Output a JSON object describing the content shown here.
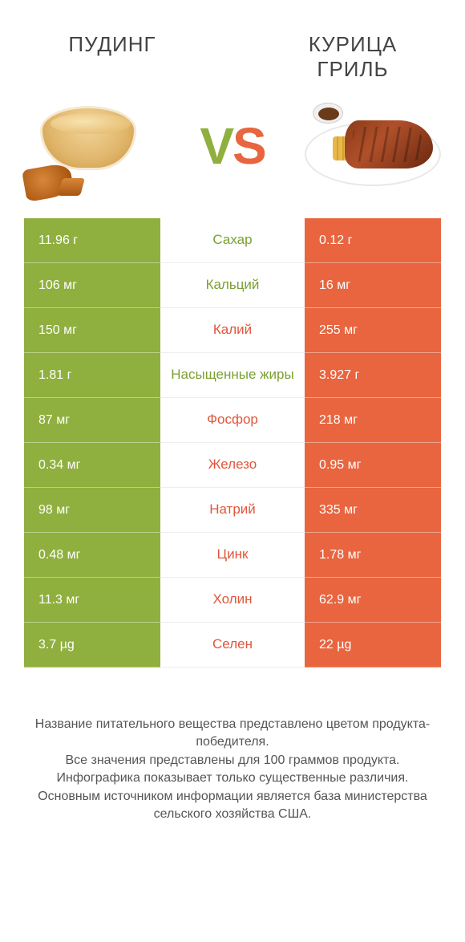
{
  "colors": {
    "green": "#8fb03e",
    "orange": "#e8653f",
    "text_green": "#7aa030",
    "text_orange": "#e0563a"
  },
  "header": {
    "left_title": "ПУДИНГ",
    "right_title": "КУРИЦА ГРИЛЬ",
    "vs_v": "V",
    "vs_s": "S"
  },
  "rows": [
    {
      "left": "11.96 г",
      "label": "Сахар",
      "right": "0.12 г",
      "winner": "left"
    },
    {
      "left": "106 мг",
      "label": "Кальций",
      "right": "16 мг",
      "winner": "left"
    },
    {
      "left": "150 мг",
      "label": "Калий",
      "right": "255 мг",
      "winner": "right"
    },
    {
      "left": "1.81 г",
      "label": "Насыщенные жиры",
      "right": "3.927 г",
      "winner": "left"
    },
    {
      "left": "87 мг",
      "label": "Фосфор",
      "right": "218 мг",
      "winner": "right"
    },
    {
      "left": "0.34 мг",
      "label": "Железо",
      "right": "0.95 мг",
      "winner": "right"
    },
    {
      "left": "98 мг",
      "label": "Натрий",
      "right": "335 мг",
      "winner": "right"
    },
    {
      "left": "0.48 мг",
      "label": "Цинк",
      "right": "1.78 мг",
      "winner": "right"
    },
    {
      "left": "11.3 мг",
      "label": "Холин",
      "right": "62.9 мг",
      "winner": "right"
    },
    {
      "left": "3.7 µg",
      "label": "Селен",
      "right": "22 µg",
      "winner": "right"
    }
  ],
  "footer": {
    "line1": "Название питательного вещества представлено цветом продукта-победителя.",
    "line2": "Все значения представлены для 100 граммов продукта.",
    "line3": "Инфографика показывает только существенные различия.",
    "line4": "Основным источником информации является база министерства сельского хозяйства США."
  }
}
